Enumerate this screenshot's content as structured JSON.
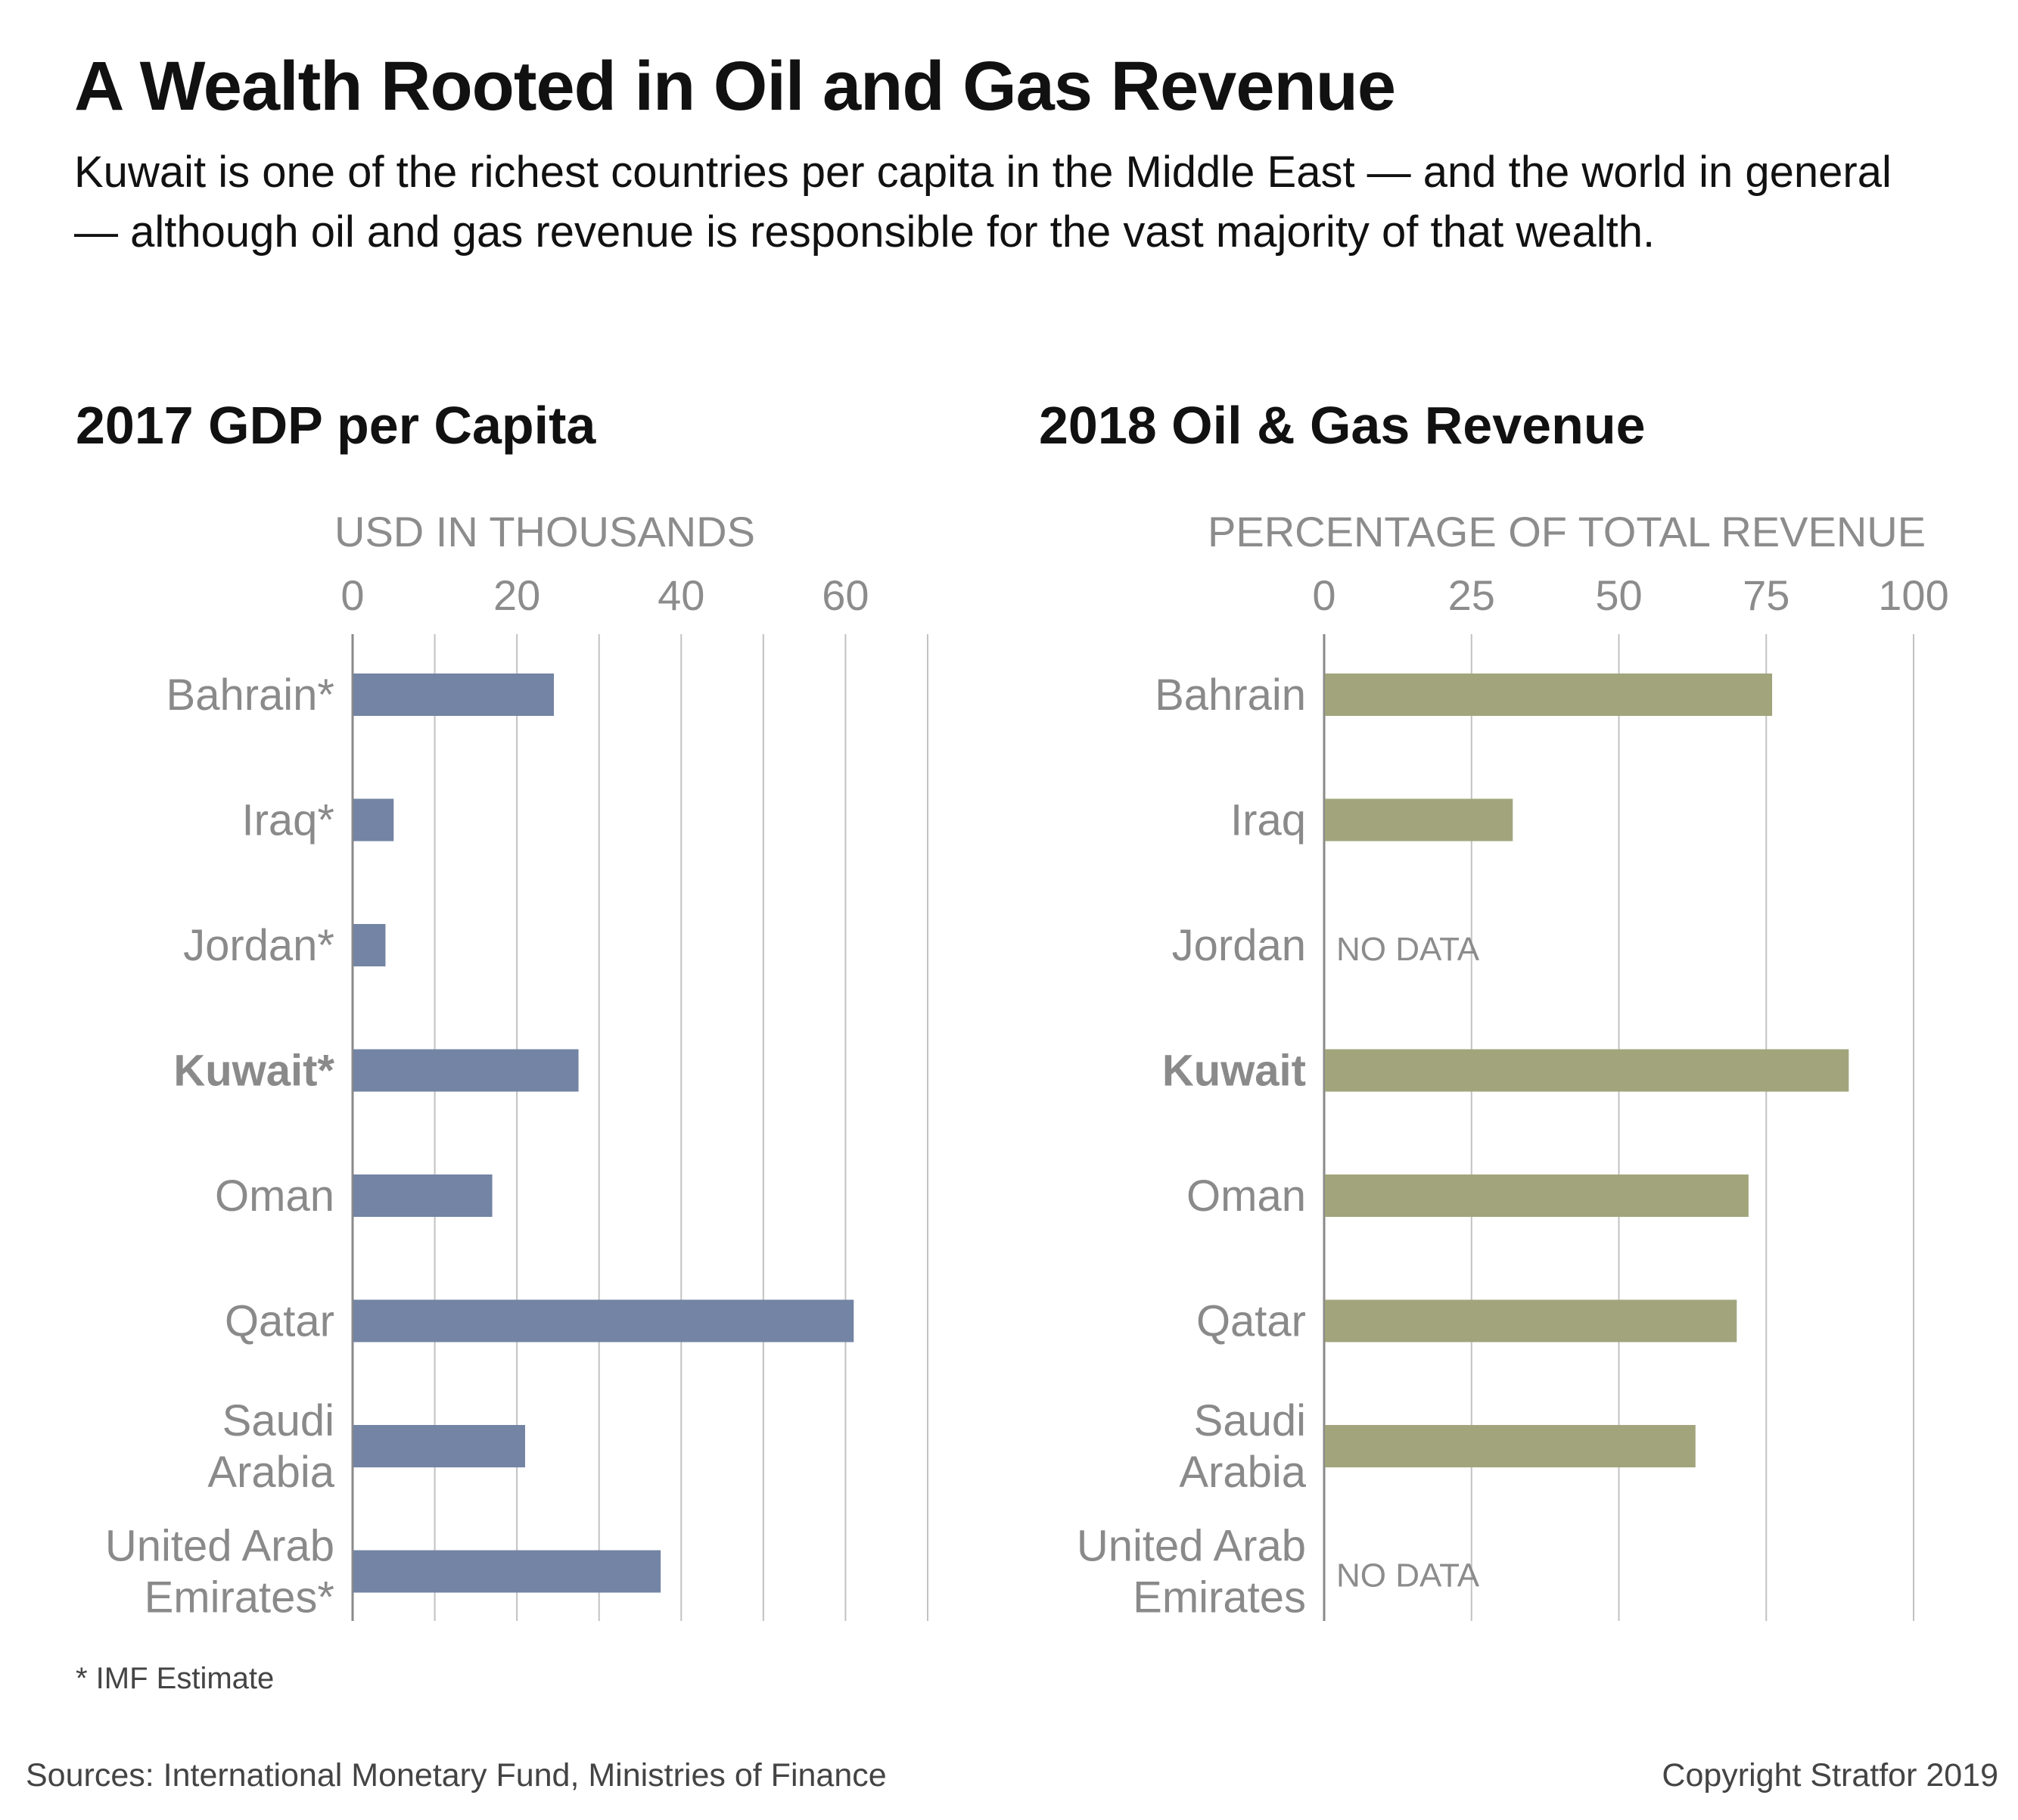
{
  "header": {
    "title": "A Wealth Rooted in Oil and Gas Revenue",
    "subtitle": "Kuwait is one of the richest countries per capita in the Middle East — and the world in general — although oil and gas revenue is responsible for the vast majority of that wealth."
  },
  "footnote": "* IMF Estimate",
  "footer": {
    "sources": "Sources: International Monetary Fund, Ministries of Finance",
    "copyright": "Copyright Stratfor 2019"
  },
  "no_data_label": "NO DATA",
  "chart_data": [
    {
      "type": "bar",
      "orientation": "horizontal",
      "title": "2017 GDP per Capita",
      "xlabel": "USD IN THOUSANDS",
      "xlim": [
        0,
        70
      ],
      "xticks": [
        0,
        20,
        40,
        60
      ],
      "gridlines": [
        0,
        10,
        20,
        30,
        40,
        50,
        60,
        70
      ],
      "grid": true,
      "color": "#7384a4",
      "categories": [
        {
          "label": [
            "Bahrain*"
          ],
          "bold": false
        },
        {
          "label": [
            "Iraq*"
          ],
          "bold": false
        },
        {
          "label": [
            "Jordan*"
          ],
          "bold": false
        },
        {
          "label": [
            "Kuwait*"
          ],
          "bold": true
        },
        {
          "label": [
            "Oman"
          ],
          "bold": false
        },
        {
          "label": [
            "Qatar"
          ],
          "bold": false
        },
        {
          "label": [
            "Saudi",
            "Arabia"
          ],
          "bold": false
        },
        {
          "label": [
            "United Arab",
            "Emirates*"
          ],
          "bold": false
        }
      ],
      "values": [
        24.5,
        5,
        4,
        27.5,
        17,
        61,
        21,
        37.5
      ]
    },
    {
      "type": "bar",
      "orientation": "horizontal",
      "title": "2018 Oil & Gas Revenue",
      "xlabel": "PERCENTAGE OF TOTAL REVENUE",
      "xlim": [
        0,
        100
      ],
      "xticks": [
        0,
        25,
        50,
        75,
        100
      ],
      "gridlines": [
        0,
        25,
        50,
        75,
        100
      ],
      "grid": true,
      "color": "#a2a57c",
      "categories": [
        {
          "label": [
            "Bahrain"
          ],
          "bold": false
        },
        {
          "label": [
            "Iraq"
          ],
          "bold": false
        },
        {
          "label": [
            "Jordan"
          ],
          "bold": false
        },
        {
          "label": [
            "Kuwait"
          ],
          "bold": true
        },
        {
          "label": [
            "Oman"
          ],
          "bold": false
        },
        {
          "label": [
            "Qatar"
          ],
          "bold": false
        },
        {
          "label": [
            "Saudi",
            "Arabia"
          ],
          "bold": false
        },
        {
          "label": [
            "United Arab",
            "Emirates"
          ],
          "bold": false
        }
      ],
      "values": [
        76,
        32,
        null,
        89,
        72,
        70,
        63,
        null
      ]
    }
  ]
}
